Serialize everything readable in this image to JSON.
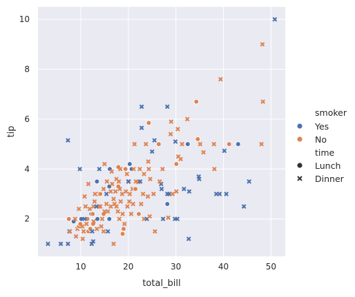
{
  "chart_data": {
    "type": "scatter",
    "xlabel": "total_bill",
    "ylabel": "tip",
    "xlim": [
      1.0,
      53.0
    ],
    "ylim": [
      0.5,
      10.5
    ],
    "xticks": [
      10,
      20,
      30,
      40,
      50
    ],
    "yticks": [
      2,
      4,
      6,
      8,
      10
    ],
    "grid": true,
    "legend": {
      "placement": "right",
      "hue_title": "smoker",
      "hue_levels": [
        {
          "label": "Yes",
          "color": "#4c72b0"
        },
        {
          "label": "No",
          "color": "#dd8452"
        }
      ],
      "style_title": "time",
      "style_levels": [
        {
          "label": "Lunch",
          "marker": "circle"
        },
        {
          "label": "Dinner",
          "marker": "x"
        }
      ]
    },
    "colors": {
      "background": "#eaeaf2",
      "grid": "#ffffff",
      "yes": "#4c72b0",
      "no": "#dd8452",
      "neutral": "#333333"
    },
    "points": [
      {
        "x": 50.8,
        "y": 10.0,
        "smoker": "Yes",
        "time": "Dinner"
      },
      {
        "x": 48.2,
        "y": 9.0,
        "smoker": "No",
        "time": "Dinner"
      },
      {
        "x": 39.4,
        "y": 7.6,
        "smoker": "No",
        "time": "Dinner"
      },
      {
        "x": 48.3,
        "y": 6.7,
        "smoker": "No",
        "time": "Dinner"
      },
      {
        "x": 34.3,
        "y": 6.7,
        "smoker": "No",
        "time": "Lunch"
      },
      {
        "x": 22.8,
        "y": 6.5,
        "smoker": "Yes",
        "time": "Dinner"
      },
      {
        "x": 28.2,
        "y": 6.5,
        "smoker": "Yes",
        "time": "Dinner"
      },
      {
        "x": 32.4,
        "y": 6.0,
        "smoker": "No",
        "time": "Dinner"
      },
      {
        "x": 24.3,
        "y": 5.85,
        "smoker": "No",
        "time": "Lunch"
      },
      {
        "x": 29.0,
        "y": 5.9,
        "smoker": "No",
        "time": "Dinner"
      },
      {
        "x": 22.8,
        "y": 5.65,
        "smoker": "Yes",
        "time": "Dinner"
      },
      {
        "x": 30.4,
        "y": 5.6,
        "smoker": "No",
        "time": "Dinner"
      },
      {
        "x": 28.9,
        "y": 5.4,
        "smoker": "No",
        "time": "Dinner"
      },
      {
        "x": 31.3,
        "y": 5.0,
        "smoker": "No",
        "time": "Dinner"
      },
      {
        "x": 7.3,
        "y": 5.15,
        "smoker": "Yes",
        "time": "Dinner"
      },
      {
        "x": 25.5,
        "y": 5.15,
        "smoker": "Yes",
        "time": "Dinner"
      },
      {
        "x": 34.6,
        "y": 5.2,
        "smoker": "No",
        "time": "Lunch"
      },
      {
        "x": 35.1,
        "y": 5.0,
        "smoker": "No",
        "time": "Dinner"
      },
      {
        "x": 32.5,
        "y": 5.0,
        "smoker": "Yes",
        "time": "Lunch"
      },
      {
        "x": 29.9,
        "y": 5.1,
        "smoker": "Yes",
        "time": "Dinner"
      },
      {
        "x": 38.0,
        "y": 5.0,
        "smoker": "No",
        "time": "Dinner"
      },
      {
        "x": 43.1,
        "y": 5.0,
        "smoker": "Yes",
        "time": "Lunch"
      },
      {
        "x": 41.2,
        "y": 5.0,
        "smoker": "No",
        "time": "Lunch"
      },
      {
        "x": 48.0,
        "y": 5.0,
        "smoker": "No",
        "time": "Dinner"
      },
      {
        "x": 26.4,
        "y": 5.0,
        "smoker": "No",
        "time": "Lunch"
      },
      {
        "x": 23.7,
        "y": 5.0,
        "smoker": "No",
        "time": "Dinner"
      },
      {
        "x": 21.3,
        "y": 5.0,
        "smoker": "No",
        "time": "Dinner"
      },
      {
        "x": 25.0,
        "y": 4.7,
        "smoker": "Yes",
        "time": "Dinner"
      },
      {
        "x": 40.2,
        "y": 4.73,
        "smoker": "Yes",
        "time": "Dinner"
      },
      {
        "x": 35.8,
        "y": 4.67,
        "smoker": "No",
        "time": "Dinner"
      },
      {
        "x": 30.5,
        "y": 4.5,
        "smoker": "No",
        "time": "Dinner"
      },
      {
        "x": 31.0,
        "y": 4.4,
        "smoker": "No",
        "time": "Dinner"
      },
      {
        "x": 24.2,
        "y": 4.3,
        "smoker": "No",
        "time": "Dinner"
      },
      {
        "x": 9.8,
        "y": 4.0,
        "smoker": "Yes",
        "time": "Dinner"
      },
      {
        "x": 13.9,
        "y": 4.0,
        "smoker": "Yes",
        "time": "Dinner"
      },
      {
        "x": 16.1,
        "y": 4.0,
        "smoker": "Yes",
        "time": "Lunch"
      },
      {
        "x": 17.9,
        "y": 4.08,
        "smoker": "No",
        "time": "Lunch"
      },
      {
        "x": 18.3,
        "y": 4.0,
        "smoker": "No",
        "time": "Dinner"
      },
      {
        "x": 19.4,
        "y": 4.0,
        "smoker": "No",
        "time": "Lunch"
      },
      {
        "x": 20.7,
        "y": 4.0,
        "smoker": "Yes",
        "time": "Lunch"
      },
      {
        "x": 21.1,
        "y": 4.0,
        "smoker": "No",
        "time": "Dinner"
      },
      {
        "x": 22.4,
        "y": 4.0,
        "smoker": "No",
        "time": "Dinner"
      },
      {
        "x": 24.3,
        "y": 4.0,
        "smoker": "No",
        "time": "Dinner"
      },
      {
        "x": 27.2,
        "y": 4.0,
        "smoker": "No",
        "time": "Dinner"
      },
      {
        "x": 30.1,
        "y": 4.2,
        "smoker": "No",
        "time": "Lunch"
      },
      {
        "x": 38.1,
        "y": 4.0,
        "smoker": "No",
        "time": "Dinner"
      },
      {
        "x": 20.3,
        "y": 4.2,
        "smoker": "Yes",
        "time": "Lunch"
      },
      {
        "x": 15.0,
        "y": 4.2,
        "smoker": "No",
        "time": "Dinner"
      },
      {
        "x": 16.5,
        "y": 3.9,
        "smoker": "No",
        "time": "Dinner"
      },
      {
        "x": 19.7,
        "y": 3.8,
        "smoker": "No",
        "time": "Dinner"
      },
      {
        "x": 23.3,
        "y": 3.8,
        "smoker": "No",
        "time": "Dinner"
      },
      {
        "x": 18.0,
        "y": 3.5,
        "smoker": "No",
        "time": "Dinner"
      },
      {
        "x": 13.4,
        "y": 3.5,
        "smoker": "Yes",
        "time": "Lunch"
      },
      {
        "x": 11.6,
        "y": 3.4,
        "smoker": "No",
        "time": "Dinner"
      },
      {
        "x": 15.5,
        "y": 3.5,
        "smoker": "No",
        "time": "Dinner"
      },
      {
        "x": 17.5,
        "y": 3.6,
        "smoker": "No",
        "time": "Dinner"
      },
      {
        "x": 20.1,
        "y": 3.5,
        "smoker": "No",
        "time": "Dinner"
      },
      {
        "x": 21.6,
        "y": 3.5,
        "smoker": "No",
        "time": "Dinner"
      },
      {
        "x": 22.1,
        "y": 3.48,
        "smoker": "No",
        "time": "Dinner"
      },
      {
        "x": 24.6,
        "y": 3.6,
        "smoker": "No",
        "time": "Dinner"
      },
      {
        "x": 26.9,
        "y": 3.4,
        "smoker": "Yes",
        "time": "Dinner"
      },
      {
        "x": 27.0,
        "y": 3.2,
        "smoker": "Yes",
        "time": "Dinner"
      },
      {
        "x": 31.7,
        "y": 3.2,
        "smoker": "Yes",
        "time": "Dinner"
      },
      {
        "x": 32.8,
        "y": 3.1,
        "smoker": "Yes",
        "time": "Dinner"
      },
      {
        "x": 34.8,
        "y": 3.7,
        "smoker": "Yes",
        "time": "Dinner"
      },
      {
        "x": 34.9,
        "y": 3.6,
        "smoker": "Yes",
        "time": "Dinner"
      },
      {
        "x": 38.5,
        "y": 3.0,
        "smoker": "Yes",
        "time": "Dinner"
      },
      {
        "x": 39.2,
        "y": 3.0,
        "smoker": "Yes",
        "time": "Dinner"
      },
      {
        "x": 40.6,
        "y": 3.0,
        "smoker": "Yes",
        "time": "Dinner"
      },
      {
        "x": 45.4,
        "y": 3.5,
        "smoker": "Yes",
        "time": "Dinner"
      },
      {
        "x": 28.6,
        "y": 3.0,
        "smoker": "Yes",
        "time": "Dinner"
      },
      {
        "x": 28.2,
        "y": 3.0,
        "smoker": "Yes",
        "time": "Dinner"
      },
      {
        "x": 29.3,
        "y": 3.0,
        "smoker": "No",
        "time": "Dinner"
      },
      {
        "x": 30.1,
        "y": 3.1,
        "smoker": "No",
        "time": "Dinner"
      },
      {
        "x": 10.8,
        "y": 2.9,
        "smoker": "No",
        "time": "Dinner"
      },
      {
        "x": 12.7,
        "y": 2.5,
        "smoker": "No",
        "time": "Dinner"
      },
      {
        "x": 12.9,
        "y": 2.7,
        "smoker": "No",
        "time": "Dinner"
      },
      {
        "x": 13.0,
        "y": 3.0,
        "smoker": "No",
        "time": "Dinner"
      },
      {
        "x": 13.9,
        "y": 3.0,
        "smoker": "No",
        "time": "Dinner"
      },
      {
        "x": 14.1,
        "y": 3.0,
        "smoker": "No",
        "time": "Lunch"
      },
      {
        "x": 14.8,
        "y": 3.2,
        "smoker": "No",
        "time": "Dinner"
      },
      {
        "x": 15.4,
        "y": 3.0,
        "smoker": "Yes",
        "time": "Dinner"
      },
      {
        "x": 16.0,
        "y": 3.3,
        "smoker": "Yes",
        "time": "Lunch"
      },
      {
        "x": 16.3,
        "y": 3.1,
        "smoker": "No",
        "time": "Dinner"
      },
      {
        "x": 16.6,
        "y": 3.4,
        "smoker": "No",
        "time": "Dinner"
      },
      {
        "x": 17.3,
        "y": 3.1,
        "smoker": "No",
        "time": "Dinner"
      },
      {
        "x": 17.9,
        "y": 3.3,
        "smoker": "No",
        "time": "Lunch"
      },
      {
        "x": 18.2,
        "y": 3.2,
        "smoker": "No",
        "time": "Dinner"
      },
      {
        "x": 18.7,
        "y": 3.0,
        "smoker": "No",
        "time": "Dinner"
      },
      {
        "x": 19.5,
        "y": 3.1,
        "smoker": "No",
        "time": "Dinner"
      },
      {
        "x": 20.3,
        "y": 3.0,
        "smoker": "No",
        "time": "Dinner"
      },
      {
        "x": 20.9,
        "y": 3.2,
        "smoker": "No",
        "time": "Dinner"
      },
      {
        "x": 21.5,
        "y": 3.2,
        "smoker": "No",
        "time": "Lunch"
      },
      {
        "x": 22.5,
        "y": 3.5,
        "smoker": "Yes",
        "time": "Dinner"
      },
      {
        "x": 23.1,
        "y": 3.0,
        "smoker": "No",
        "time": "Dinner"
      },
      {
        "x": 24.1,
        "y": 2.9,
        "smoker": "No",
        "time": "Dinner"
      },
      {
        "x": 25.3,
        "y": 3.0,
        "smoker": "No",
        "time": "Dinner"
      },
      {
        "x": 26.6,
        "y": 3.5,
        "smoker": "No",
        "time": "Dinner"
      },
      {
        "x": 20.0,
        "y": 3.5,
        "smoker": "Yes",
        "time": "Dinner"
      },
      {
        "x": 13.8,
        "y": 2.5,
        "smoker": "No",
        "time": "Dinner"
      },
      {
        "x": 11.0,
        "y": 2.5,
        "smoker": "No",
        "time": "Dinner"
      },
      {
        "x": 9.6,
        "y": 2.4,
        "smoker": "No",
        "time": "Dinner"
      },
      {
        "x": 11.4,
        "y": 2.0,
        "smoker": "No",
        "time": "Lunch"
      },
      {
        "x": 11.9,
        "y": 2.4,
        "smoker": "No",
        "time": "Dinner"
      },
      {
        "x": 12.2,
        "y": 2.2,
        "smoker": "Yes",
        "time": "Lunch"
      },
      {
        "x": 12.5,
        "y": 2.2,
        "smoker": "No",
        "time": "Lunch"
      },
      {
        "x": 12.6,
        "y": 1.8,
        "smoker": "No",
        "time": "Lunch"
      },
      {
        "x": 13.3,
        "y": 2.5,
        "smoker": "Yes",
        "time": "Dinner"
      },
      {
        "x": 13.5,
        "y": 2.0,
        "smoker": "Yes",
        "time": "Lunch"
      },
      {
        "x": 14.1,
        "y": 2.5,
        "smoker": "No",
        "time": "Dinner"
      },
      {
        "x": 14.5,
        "y": 2.0,
        "smoker": "No",
        "time": "Dinner"
      },
      {
        "x": 14.8,
        "y": 2.2,
        "smoker": "No",
        "time": "Lunch"
      },
      {
        "x": 15.0,
        "y": 2.3,
        "smoker": "No",
        "time": "Dinner"
      },
      {
        "x": 15.4,
        "y": 2.6,
        "smoker": "No",
        "time": "Dinner"
      },
      {
        "x": 15.7,
        "y": 2.3,
        "smoker": "No",
        "time": "Dinner"
      },
      {
        "x": 16.0,
        "y": 2.0,
        "smoker": "Yes",
        "time": "Lunch"
      },
      {
        "x": 16.3,
        "y": 2.5,
        "smoker": "No",
        "time": "Dinner"
      },
      {
        "x": 16.9,
        "y": 2.8,
        "smoker": "No",
        "time": "Dinner"
      },
      {
        "x": 17.1,
        "y": 2.6,
        "smoker": "No",
        "time": "Dinner"
      },
      {
        "x": 17.5,
        "y": 2.5,
        "smoker": "No",
        "time": "Dinner"
      },
      {
        "x": 17.8,
        "y": 2.3,
        "smoker": "No",
        "time": "Dinner"
      },
      {
        "x": 18.1,
        "y": 2.0,
        "smoker": "No",
        "time": "Dinner"
      },
      {
        "x": 18.4,
        "y": 2.7,
        "smoker": "No",
        "time": "Dinner"
      },
      {
        "x": 18.8,
        "y": 2.2,
        "smoker": "No",
        "time": "Dinner"
      },
      {
        "x": 19.2,
        "y": 1.8,
        "smoker": "No",
        "time": "Dinner"
      },
      {
        "x": 19.8,
        "y": 2.5,
        "smoker": "No",
        "time": "Dinner"
      },
      {
        "x": 20.2,
        "y": 2.7,
        "smoker": "No",
        "time": "Dinner"
      },
      {
        "x": 20.6,
        "y": 2.2,
        "smoker": "No",
        "time": "Dinner"
      },
      {
        "x": 21.0,
        "y": 2.6,
        "smoker": "No",
        "time": "Dinner"
      },
      {
        "x": 22.2,
        "y": 2.2,
        "smoker": "No",
        "time": "Lunch"
      },
      {
        "x": 22.7,
        "y": 2.6,
        "smoker": "No",
        "time": "Dinner"
      },
      {
        "x": 23.3,
        "y": 2.0,
        "smoker": "No",
        "time": "Dinner"
      },
      {
        "x": 23.9,
        "y": 2.0,
        "smoker": "Yes",
        "time": "Dinner"
      },
      {
        "x": 24.5,
        "y": 2.1,
        "smoker": "No",
        "time": "Dinner"
      },
      {
        "x": 25.6,
        "y": 1.5,
        "smoker": "No",
        "time": "Dinner"
      },
      {
        "x": 27.3,
        "y": 2.0,
        "smoker": "Yes",
        "time": "Dinner"
      },
      {
        "x": 28.2,
        "y": 2.6,
        "smoker": "Yes",
        "time": "Lunch"
      },
      {
        "x": 28.4,
        "y": 2.05,
        "smoker": "No",
        "time": "Dinner"
      },
      {
        "x": 29.8,
        "y": 2.0,
        "smoker": "Yes",
        "time": "Dinner"
      },
      {
        "x": 30.3,
        "y": 2.0,
        "smoker": "Yes",
        "time": "Dinner"
      },
      {
        "x": 32.7,
        "y": 1.2,
        "smoker": "Yes",
        "time": "Dinner"
      },
      {
        "x": 44.3,
        "y": 2.5,
        "smoker": "Yes",
        "time": "Dinner"
      },
      {
        "x": 7.5,
        "y": 2.0,
        "smoker": "No",
        "time": "Lunch"
      },
      {
        "x": 8.5,
        "y": 1.9,
        "smoker": "Yes",
        "time": "Lunch"
      },
      {
        "x": 8.8,
        "y": 2.0,
        "smoker": "No",
        "time": "Dinner"
      },
      {
        "x": 9.3,
        "y": 1.6,
        "smoker": "No",
        "time": "Dinner"
      },
      {
        "x": 9.6,
        "y": 1.7,
        "smoker": "No",
        "time": "Lunch"
      },
      {
        "x": 9.9,
        "y": 1.8,
        "smoker": "No",
        "time": "Lunch"
      },
      {
        "x": 10.1,
        "y": 2.0,
        "smoker": "Yes",
        "time": "Lunch"
      },
      {
        "x": 10.3,
        "y": 1.7,
        "smoker": "No",
        "time": "Dinner"
      },
      {
        "x": 10.6,
        "y": 1.5,
        "smoker": "No",
        "time": "Dinner"
      },
      {
        "x": 10.8,
        "y": 2.0,
        "smoker": "Yes",
        "time": "Dinner"
      },
      {
        "x": 11.2,
        "y": 1.8,
        "smoker": "No",
        "time": "Dinner"
      },
      {
        "x": 11.6,
        "y": 1.5,
        "smoker": "No",
        "time": "Lunch"
      },
      {
        "x": 12.0,
        "y": 1.6,
        "smoker": "No",
        "time": "Lunch"
      },
      {
        "x": 12.4,
        "y": 1.5,
        "smoker": "Yes",
        "time": "Dinner"
      },
      {
        "x": 12.7,
        "y": 1.9,
        "smoker": "No",
        "time": "Dinner"
      },
      {
        "x": 12.3,
        "y": 1.0,
        "smoker": "Yes",
        "time": "Dinner"
      },
      {
        "x": 12.6,
        "y": 1.1,
        "smoker": "Yes",
        "time": "Dinner"
      },
      {
        "x": 13.4,
        "y": 1.6,
        "smoker": "No",
        "time": "Dinner"
      },
      {
        "x": 14.3,
        "y": 1.7,
        "smoker": "No",
        "time": "Dinner"
      },
      {
        "x": 14.8,
        "y": 1.5,
        "smoker": "No",
        "time": "Dinner"
      },
      {
        "x": 15.7,
        "y": 1.5,
        "smoker": "Yes",
        "time": "Dinner"
      },
      {
        "x": 16.9,
        "y": 1.0,
        "smoker": "No",
        "time": "Dinner"
      },
      {
        "x": 18.8,
        "y": 1.4,
        "smoker": "No",
        "time": "Lunch"
      },
      {
        "x": 19.0,
        "y": 1.6,
        "smoker": "No",
        "time": "Lunch"
      },
      {
        "x": 7.6,
        "y": 1.5,
        "smoker": "Yes",
        "time": "Dinner"
      },
      {
        "x": 7.7,
        "y": 1.5,
        "smoker": "No",
        "time": "Dinner"
      },
      {
        "x": 5.8,
        "y": 1.0,
        "smoker": "Yes",
        "time": "Dinner"
      },
      {
        "x": 3.1,
        "y": 1.0,
        "smoker": "Yes",
        "time": "Dinner"
      },
      {
        "x": 7.3,
        "y": 1.0,
        "smoker": "Yes",
        "time": "Dinner"
      },
      {
        "x": 9.0,
        "y": 1.3,
        "smoker": "No",
        "time": "Dinner"
      },
      {
        "x": 10.4,
        "y": 1.2,
        "smoker": "No",
        "time": "Dinner"
      }
    ]
  }
}
